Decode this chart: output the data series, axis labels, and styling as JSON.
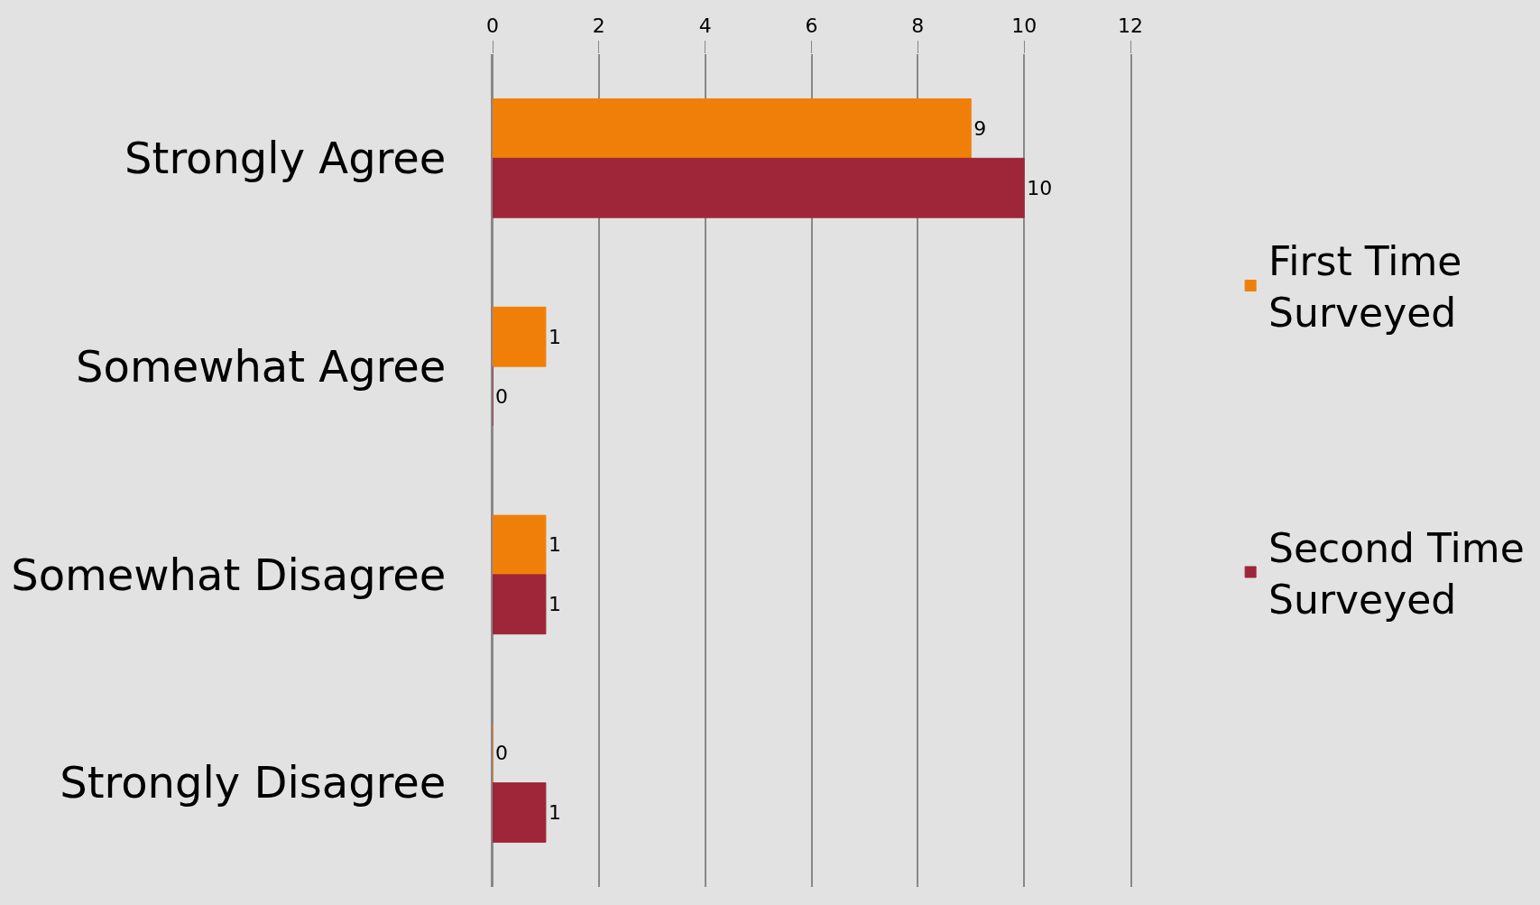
{
  "chart_data": {
    "type": "bar",
    "orientation": "horizontal",
    "categories": [
      "Strongly Agree",
      "Somewhat Agree",
      "Somewhat Disagree",
      "Strongly Disagree"
    ],
    "series": [
      {
        "name": "First Time Surveyed",
        "color": "#f07f09",
        "values": [
          9,
          1,
          1,
          0
        ]
      },
      {
        "name": "Second Time Surveyed",
        "color": "#9e2638",
        "values": [
          10,
          0,
          1,
          1
        ]
      }
    ],
    "xlim": [
      0,
      12
    ],
    "xticks": [
      0,
      2,
      4,
      6,
      8,
      10,
      12
    ],
    "grid": "x",
    "legend": "right",
    "data_labels": true
  }
}
